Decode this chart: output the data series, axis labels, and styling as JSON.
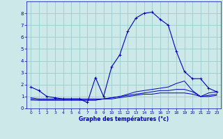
{
  "xlabel": "Graphe des températures (°c)",
  "background_color": "#cce8e8",
  "grid_color": "#99cccc",
  "line_color": "#0000bb",
  "xlim": [
    -0.5,
    23.5
  ],
  "ylim": [
    0,
    9
  ],
  "xticks": [
    0,
    1,
    2,
    3,
    4,
    5,
    6,
    7,
    8,
    9,
    10,
    11,
    12,
    13,
    14,
    15,
    16,
    17,
    18,
    19,
    20,
    21,
    22,
    23
  ],
  "yticks": [
    0,
    1,
    2,
    3,
    4,
    5,
    6,
    7,
    8
  ],
  "series1_x": [
    0,
    1,
    2,
    3,
    4,
    5,
    6,
    7,
    8,
    9,
    10,
    11,
    12,
    13,
    14,
    15,
    16,
    17,
    18,
    19,
    20,
    21,
    22,
    23
  ],
  "series1_y": [
    1.8,
    1.5,
    1.0,
    0.9,
    0.8,
    0.8,
    0.8,
    0.5,
    2.6,
    1.0,
    3.5,
    4.5,
    6.5,
    7.6,
    8.0,
    8.1,
    7.5,
    7.0,
    4.8,
    3.1,
    2.5,
    2.5,
    1.7,
    1.4
  ],
  "series2_x": [
    0,
    1,
    2,
    3,
    4,
    5,
    6,
    7,
    8,
    9,
    10,
    11,
    12,
    13,
    14,
    15,
    16,
    17,
    18,
    19,
    20,
    21,
    22,
    23
  ],
  "series2_y": [
    0.7,
    0.7,
    0.7,
    0.7,
    0.7,
    0.7,
    0.7,
    0.7,
    0.7,
    0.8,
    0.9,
    1.0,
    1.2,
    1.4,
    1.5,
    1.6,
    1.7,
    1.8,
    2.1,
    2.3,
    1.5,
    1.0,
    1.3,
    1.4
  ],
  "series3_x": [
    0,
    1,
    2,
    3,
    4,
    5,
    6,
    7,
    8,
    9,
    10,
    11,
    12,
    13,
    14,
    15,
    16,
    17,
    18,
    19,
    20,
    21,
    22,
    23
  ],
  "series3_y": [
    0.9,
    0.8,
    0.8,
    0.8,
    0.8,
    0.8,
    0.8,
    0.8,
    0.8,
    0.8,
    0.9,
    1.0,
    1.1,
    1.2,
    1.3,
    1.4,
    1.5,
    1.5,
    1.6,
    1.6,
    1.4,
    1.0,
    1.1,
    1.2
  ],
  "series4_x": [
    0,
    1,
    2,
    3,
    4,
    5,
    6,
    7,
    8,
    9,
    10,
    11,
    12,
    13,
    14,
    15,
    16,
    17,
    18,
    19,
    20,
    21,
    22,
    23
  ],
  "series4_y": [
    0.8,
    0.7,
    0.7,
    0.7,
    0.7,
    0.7,
    0.7,
    0.7,
    0.7,
    0.8,
    0.8,
    0.9,
    1.0,
    1.1,
    1.2,
    1.2,
    1.3,
    1.3,
    1.3,
    1.3,
    1.2,
    1.0,
    1.0,
    1.1
  ]
}
